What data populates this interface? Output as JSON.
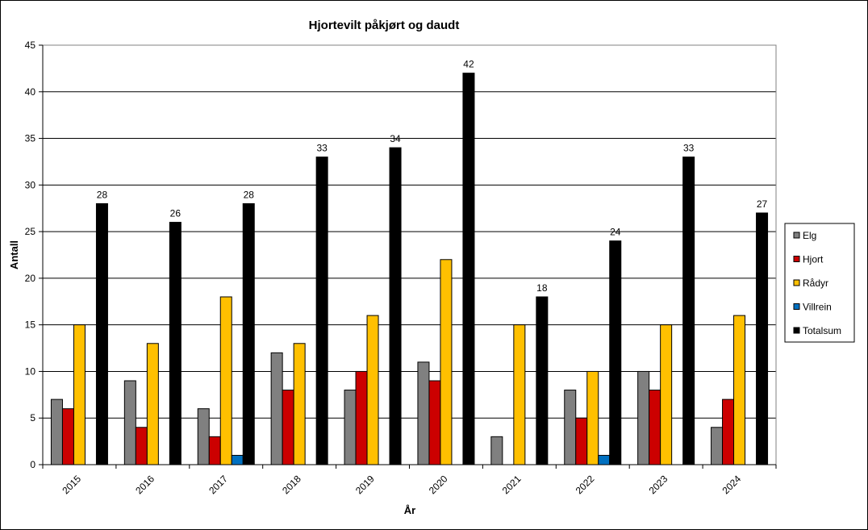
{
  "chart_data": {
    "type": "bar",
    "title": "Hjortevilt påkjørt og daudt",
    "xlabel": "År",
    "ylabel": "Antall",
    "ylim": [
      0,
      45
    ],
    "yticks": [
      0,
      5,
      10,
      15,
      20,
      25,
      30,
      35,
      40,
      45
    ],
    "grid": true,
    "legend_position": "right",
    "categories": [
      "2015",
      "2016",
      "2017",
      "2018",
      "2019",
      "2020",
      "2021",
      "2022",
      "2023",
      "2024"
    ],
    "series": [
      {
        "name": "Elg",
        "color": "#808080",
        "values": [
          7,
          9,
          6,
          12,
          8,
          11,
          3,
          8,
          10,
          4
        ]
      },
      {
        "name": "Hjort",
        "color": "#cc0000",
        "values": [
          6,
          4,
          3,
          8,
          10,
          9,
          0,
          5,
          8,
          7
        ]
      },
      {
        "name": "Rådyr",
        "color": "#ffc000",
        "values": [
          15,
          13,
          18,
          13,
          16,
          22,
          15,
          10,
          15,
          16
        ]
      },
      {
        "name": "Villrein",
        "color": "#0070c0",
        "values": [
          0,
          0,
          1,
          0,
          0,
          0,
          0,
          1,
          0,
          0
        ]
      },
      {
        "name": "Totalsum",
        "color": "#000000",
        "values": [
          28,
          26,
          28,
          33,
          34,
          42,
          18,
          24,
          33,
          27
        ],
        "data_labels": true
      }
    ]
  }
}
